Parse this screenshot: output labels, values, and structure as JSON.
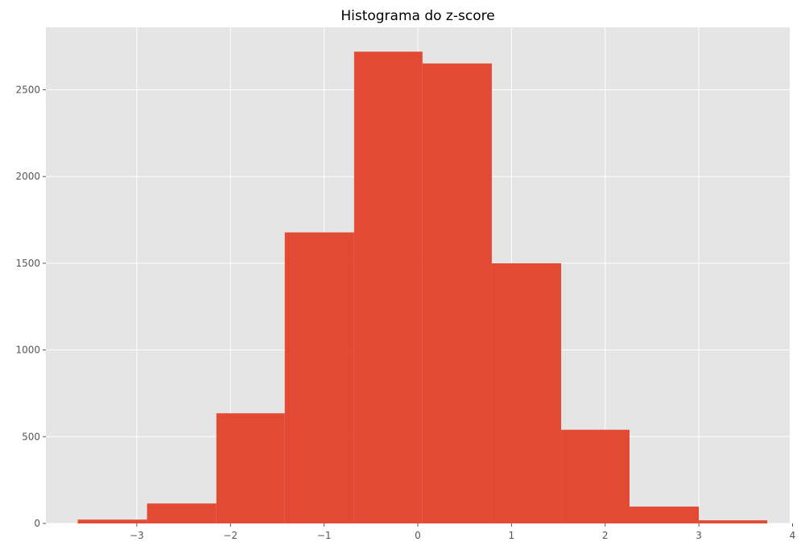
{
  "chart_data": {
    "type": "bar",
    "title": "Histograma do z-score",
    "xlabel": "",
    "ylabel": "",
    "xlim": [
      -3.97,
      3.97
    ],
    "ylim": [
      0,
      2860
    ],
    "xticks": [
      -3,
      -2,
      -1,
      0,
      1,
      2,
      3,
      4
    ],
    "xtick_labels": [
      "−3",
      "−2",
      "−1",
      "0",
      "1",
      "2",
      "3",
      "4"
    ],
    "yticks": [
      0,
      500,
      1000,
      1500,
      2000,
      2500
    ],
    "ytick_labels": [
      "0",
      "500",
      "1000",
      "1500",
      "2000",
      "2500"
    ],
    "grid": true,
    "bins": [
      {
        "x0": -3.63,
        "x1": -2.89,
        "count": 22
      },
      {
        "x0": -2.89,
        "x1": -2.15,
        "count": 115
      },
      {
        "x0": -2.15,
        "x1": -1.42,
        "count": 635
      },
      {
        "x0": -1.42,
        "x1": -0.68,
        "count": 1678
      },
      {
        "x0": -0.68,
        "x1": 0.05,
        "count": 2720
      },
      {
        "x0": 0.05,
        "x1": 0.79,
        "count": 2652
      },
      {
        "x0": 0.79,
        "x1": 1.53,
        "count": 1500
      },
      {
        "x0": 1.53,
        "x1": 2.26,
        "count": 540
      },
      {
        "x0": 2.26,
        "x1": 3.0,
        "count": 97
      },
      {
        "x0": 3.0,
        "x1": 3.73,
        "count": 18
      }
    ]
  },
  "colors": {
    "bar": "#e24a33",
    "plot_background": "#e5e5e5",
    "grid": "#ffffff",
    "tick": "#555555"
  }
}
